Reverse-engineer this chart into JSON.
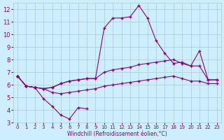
{
  "xlabel": "Windchill (Refroidissement éolien,°C)",
  "x_values": [
    0,
    1,
    2,
    3,
    4,
    5,
    6,
    7,
    8,
    9,
    10,
    11,
    12,
    13,
    14,
    15,
    16,
    17,
    18,
    19,
    20,
    21,
    22,
    23
  ],
  "line_main": [
    6.7,
    5.9,
    5.8,
    4.9,
    4.3,
    3.6,
    3.3,
    4.2,
    4.1,
    null,
    null,
    null,
    null,
    null,
    null,
    null,
    null,
    null,
    null,
    null,
    null,
    null,
    null,
    null
  ],
  "line_upper": [
    6.7,
    5.9,
    5.8,
    5.7,
    5.8,
    6.1,
    6.3,
    6.4,
    6.5,
    6.5,
    7.0,
    7.2,
    7.3,
    7.4,
    7.6,
    7.7,
    7.8,
    7.9,
    8.0,
    7.7,
    7.5,
    7.5,
    6.4,
    6.4
  ],
  "line_middle": [
    6.7,
    5.9,
    5.8,
    5.7,
    5.8,
    6.1,
    6.3,
    6.4,
    6.5,
    6.5,
    10.5,
    11.3,
    11.3,
    11.4,
    12.3,
    11.3,
    9.5,
    8.5,
    7.7,
    7.8,
    7.5,
    8.7,
    6.4,
    6.4
  ],
  "line_lower": [
    6.7,
    5.9,
    5.8,
    5.7,
    5.4,
    5.3,
    5.4,
    5.5,
    5.6,
    5.7,
    5.9,
    6.0,
    6.1,
    6.2,
    6.3,
    6.4,
    6.5,
    6.6,
    6.7,
    6.5,
    6.3,
    6.3,
    6.1,
    6.1
  ],
  "line_color": "#880088",
  "bg_color": "#cceeff",
  "grid_color": "#aacccc",
  "ylim": [
    3,
    12.5
  ],
  "xlim": [
    -0.5,
    23.5
  ],
  "yticks": [
    3,
    4,
    5,
    6,
    7,
    8,
    9,
    10,
    11,
    12
  ],
  "xticks": [
    0,
    1,
    2,
    3,
    4,
    5,
    6,
    7,
    8,
    9,
    10,
    11,
    12,
    13,
    14,
    15,
    16,
    17,
    18,
    19,
    20,
    21,
    22,
    23
  ]
}
